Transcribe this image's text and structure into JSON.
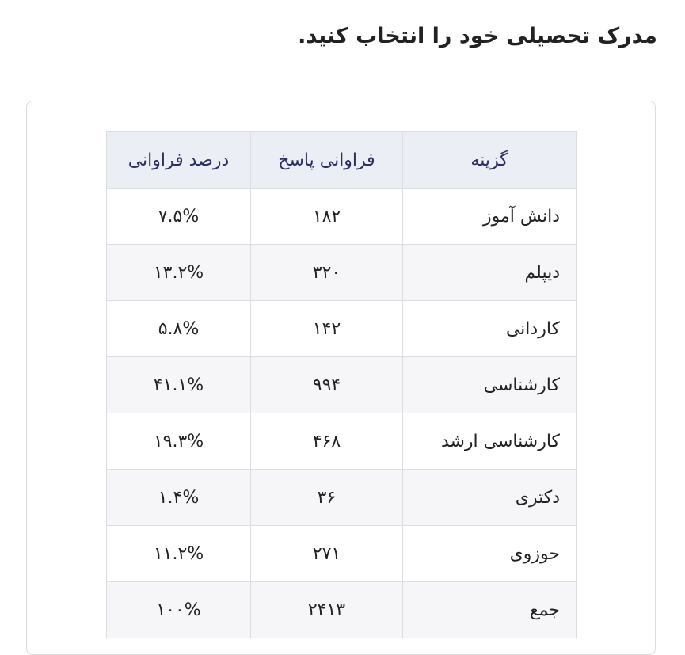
{
  "title": "مدرک تحصیلی خود را انتخاب کنید.",
  "table": {
    "headers": [
      "گزینه",
      "فراوانی پاسخ",
      "درصد فراوانی"
    ],
    "rows": [
      [
        "دانش آموز",
        "۱۸۲",
        "۷.۵%"
      ],
      [
        "دیپلم",
        "۳۲۰",
        "۱۳.۲%"
      ],
      [
        "کاردانی",
        "۱۴۲",
        "۵.۸%"
      ],
      [
        "کارشناسی",
        "۹۹۴",
        "۴۱.۱%"
      ],
      [
        "کارشناسی ارشد",
        "۴۶۸",
        "۱۹.۳%"
      ],
      [
        "دکتری",
        "۳۶",
        "۱.۴%"
      ],
      [
        "حوزوی",
        "۲۷۱",
        "۱۱.۲%"
      ],
      [
        "جمع",
        "۲۴۱۳",
        "۱۰۰%"
      ]
    ]
  }
}
